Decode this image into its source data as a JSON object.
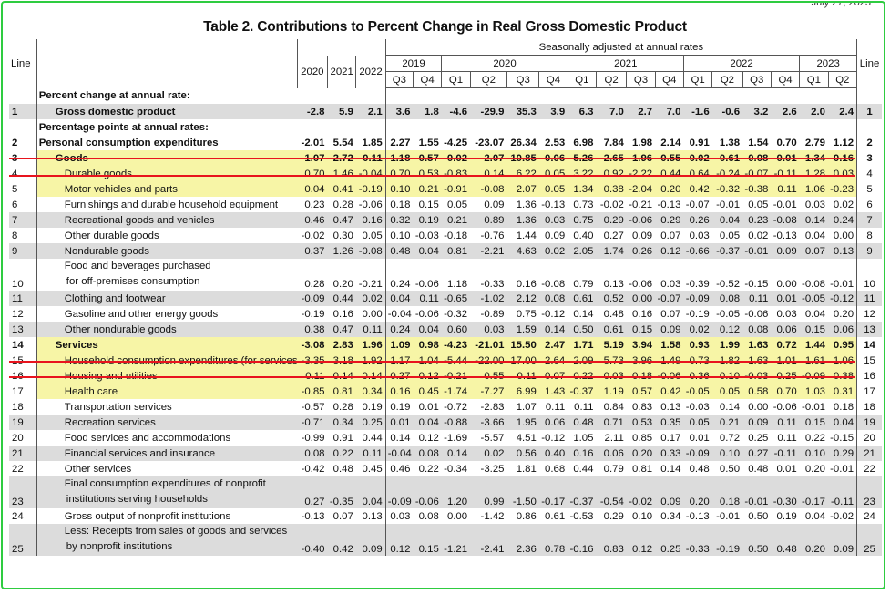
{
  "corner_text": "July 27, 2023",
  "title": "Table 2. Contributions to Percent Change in Real Gross Domestic Product",
  "header": {
    "line": "Line",
    "seasonal": "Seasonally adjusted at annual rates",
    "annual_years": [
      "2020",
      "2021",
      "2022"
    ],
    "quarter_years": [
      {
        "year": "2019",
        "span": 2
      },
      {
        "year": "2020",
        "span": 4
      },
      {
        "year": "2021",
        "span": 4
      },
      {
        "year": "2022",
        "span": 4
      },
      {
        "year": "2023",
        "span": 2
      }
    ],
    "quarters": [
      "Q3",
      "Q4",
      "Q1",
      "Q2",
      "Q3",
      "Q4",
      "Q1",
      "Q2",
      "Q3",
      "Q4",
      "Q1",
      "Q2",
      "Q3",
      "Q4",
      "Q1",
      "Q2"
    ]
  },
  "rows": [
    {
      "line": "",
      "label": "Percent change at annual rate:",
      "kind": "section",
      "indent": 0,
      "values": []
    },
    {
      "line": "1",
      "label": "Gross domestic product",
      "kind": "bold-gray",
      "indent": 1,
      "values": [
        "-2.8",
        "5.9",
        "2.1",
        "3.6",
        "1.8",
        "-4.6",
        "-29.9",
        "35.3",
        "3.9",
        "6.3",
        "7.0",
        "2.7",
        "7.0",
        "-1.6",
        "-0.6",
        "3.2",
        "2.6",
        "2.0",
        "2.4"
      ]
    },
    {
      "line": "",
      "label": "Percentage points at annual rates:",
      "kind": "section",
      "indent": 0,
      "values": []
    },
    {
      "line": "2",
      "label": "Personal consumption expenditures",
      "kind": "bold-white",
      "indent": 0,
      "values": [
        "-2.01",
        "5.54",
        "1.85",
        "2.27",
        "1.55",
        "-4.25",
        "-23.07",
        "26.34",
        "2.53",
        "6.98",
        "7.84",
        "1.98",
        "2.14",
        "0.91",
        "1.38",
        "1.54",
        "0.70",
        "2.79",
        "1.12"
      ]
    },
    {
      "line": "3",
      "label": "Goods",
      "kind": "bold-yellow",
      "indent": 1,
      "values": [
        "1.07",
        "2.72",
        "-0.11",
        "1.18",
        "0.57",
        "-0.02",
        "-2.07",
        "10.85",
        "0.06",
        "5.26",
        "2.65",
        "-1.96",
        "0.55",
        "-0.02",
        "-0.61",
        "-0.08",
        "-0.01",
        "1.34",
        "0.16"
      ]
    },
    {
      "line": "4",
      "label": "Durable goods",
      "kind": "yellow",
      "indent": 2,
      "values": [
        "0.70",
        "1.46",
        "-0.04",
        "0.70",
        "0.53",
        "-0.83",
        "0.14",
        "6.22",
        "0.05",
        "3.22",
        "0.92",
        "-2.22",
        "0.44",
        "0.64",
        "-0.24",
        "-0.07",
        "-0.11",
        "1.28",
        "0.03"
      ]
    },
    {
      "line": "5",
      "label": "Motor vehicles and parts",
      "kind": "yellow",
      "indent": 3,
      "values": [
        "0.04",
        "0.41",
        "-0.19",
        "0.10",
        "0.21",
        "-0.91",
        "-0.08",
        "2.07",
        "0.05",
        "1.34",
        "0.38",
        "-2.04",
        "0.20",
        "0.42",
        "-0.32",
        "-0.38",
        "0.11",
        "1.06",
        "-0.23"
      ]
    },
    {
      "line": "6",
      "label": "Furnishings and durable household equipment",
      "kind": "white",
      "indent": 3,
      "values": [
        "0.23",
        "0.28",
        "-0.06",
        "0.18",
        "0.15",
        "0.05",
        "0.09",
        "1.36",
        "-0.13",
        "0.73",
        "-0.02",
        "-0.21",
        "-0.13",
        "-0.07",
        "-0.01",
        "0.05",
        "-0.01",
        "0.03",
        "0.02"
      ]
    },
    {
      "line": "7",
      "label": "Recreational goods and vehicles",
      "kind": "gray",
      "indent": 3,
      "values": [
        "0.46",
        "0.47",
        "0.16",
        "0.32",
        "0.19",
        "0.21",
        "0.89",
        "1.36",
        "0.03",
        "0.75",
        "0.29",
        "-0.06",
        "0.29",
        "0.26",
        "0.04",
        "0.23",
        "-0.08",
        "0.14",
        "0.24"
      ]
    },
    {
      "line": "8",
      "label": "Other durable goods",
      "kind": "white",
      "indent": 3,
      "values": [
        "-0.02",
        "0.30",
        "0.05",
        "0.10",
        "-0.03",
        "-0.18",
        "-0.76",
        "1.44",
        "0.09",
        "0.40",
        "0.27",
        "0.09",
        "0.07",
        "0.03",
        "0.05",
        "0.02",
        "-0.13",
        "0.04",
        "0.00"
      ]
    },
    {
      "line": "9",
      "label": "Nondurable goods",
      "kind": "gray",
      "indent": 2,
      "values": [
        "0.37",
        "1.26",
        "-0.08",
        "0.48",
        "0.04",
        "0.81",
        "-2.21",
        "4.63",
        "0.02",
        "2.05",
        "1.74",
        "0.26",
        "0.12",
        "-0.66",
        "-0.37",
        "-0.01",
        "0.09",
        "0.07",
        "0.13"
      ]
    },
    {
      "line": "10",
      "label": "Food and beverages purchased",
      "label2": "for off-premises consumption",
      "kind": "white-tall",
      "indent": 3,
      "values": [
        "0.28",
        "0.20",
        "-0.21",
        "0.24",
        "-0.06",
        "1.18",
        "-0.33",
        "0.16",
        "-0.08",
        "0.79",
        "0.13",
        "-0.06",
        "0.03",
        "-0.39",
        "-0.52",
        "-0.15",
        "0.00",
        "-0.08",
        "-0.01"
      ]
    },
    {
      "line": "11",
      "label": "Clothing and footwear",
      "kind": "gray",
      "indent": 3,
      "values": [
        "-0.09",
        "0.44",
        "0.02",
        "0.04",
        "0.11",
        "-0.65",
        "-1.02",
        "2.12",
        "0.08",
        "0.61",
        "0.52",
        "0.00",
        "-0.07",
        "-0.09",
        "0.08",
        "0.11",
        "0.01",
        "-0.05",
        "-0.12"
      ]
    },
    {
      "line": "12",
      "label": "Gasoline and other energy goods",
      "kind": "white",
      "indent": 3,
      "values": [
        "-0.19",
        "0.16",
        "0.00",
        "-0.04",
        "-0.06",
        "-0.32",
        "-0.89",
        "0.75",
        "-0.12",
        "0.14",
        "0.48",
        "0.16",
        "0.07",
        "-0.19",
        "-0.05",
        "-0.06",
        "0.03",
        "0.04",
        "0.20"
      ]
    },
    {
      "line": "13",
      "label": "Other nondurable goods",
      "kind": "gray",
      "indent": 3,
      "values": [
        "0.38",
        "0.47",
        "0.11",
        "0.24",
        "0.04",
        "0.60",
        "0.03",
        "1.59",
        "0.14",
        "0.50",
        "0.61",
        "0.15",
        "0.09",
        "0.02",
        "0.12",
        "0.08",
        "0.06",
        "0.15",
        "0.06"
      ]
    },
    {
      "line": "14",
      "label": "Services",
      "kind": "bold-yellow",
      "indent": 1,
      "values": [
        "-3.08",
        "2.83",
        "1.96",
        "1.09",
        "0.98",
        "-4.23",
        "-21.01",
        "15.50",
        "2.47",
        "1.71",
        "5.19",
        "3.94",
        "1.58",
        "0.93",
        "1.99",
        "1.63",
        "0.72",
        "1.44",
        "0.95"
      ]
    },
    {
      "line": "15",
      "label": "Household consumption expenditures (for services)",
      "kind": "yellow",
      "indent": 2,
      "values": [
        "-3.35",
        "3.18",
        "1.92",
        "1.17",
        "1.04",
        "-5.44",
        "-22.00",
        "17.00",
        "2.64",
        "2.09",
        "5.73",
        "3.96",
        "1.49",
        "0.73",
        "1.82",
        "1.63",
        "1.01",
        "1.61",
        "1.06"
      ]
    },
    {
      "line": "16",
      "label": "Housing and utilities",
      "kind": "yellow",
      "indent": 3,
      "values": [
        "0.11",
        "0.14",
        "0.14",
        "0.27",
        "0.12",
        "-0.21",
        "0.55",
        "0.11",
        "0.07",
        "0.22",
        "0.03",
        "0.18",
        "-0.06",
        "0.36",
        "0.10",
        "-0.03",
        "0.25",
        "-0.09",
        "0.38"
      ]
    },
    {
      "line": "17",
      "label": "Health care",
      "kind": "yellow",
      "indent": 3,
      "values": [
        "-0.85",
        "0.81",
        "0.34",
        "0.16",
        "0.45",
        "-1.74",
        "-7.27",
        "6.99",
        "1.43",
        "-0.37",
        "1.19",
        "0.57",
        "0.42",
        "-0.05",
        "0.05",
        "0.58",
        "0.70",
        "1.03",
        "0.31"
      ]
    },
    {
      "line": "18",
      "label": "Transportation services",
      "kind": "white",
      "indent": 3,
      "values": [
        "-0.57",
        "0.28",
        "0.19",
        "0.19",
        "0.01",
        "-0.72",
        "-2.83",
        "1.07",
        "0.11",
        "0.11",
        "0.84",
        "0.83",
        "0.13",
        "-0.03",
        "0.14",
        "0.00",
        "-0.06",
        "-0.01",
        "0.18"
      ]
    },
    {
      "line": "19",
      "label": "Recreation services",
      "kind": "gray",
      "indent": 3,
      "values": [
        "-0.71",
        "0.34",
        "0.25",
        "0.01",
        "0.04",
        "-0.88",
        "-3.66",
        "1.95",
        "0.06",
        "0.48",
        "0.71",
        "0.53",
        "0.35",
        "0.05",
        "0.21",
        "0.09",
        "0.11",
        "0.15",
        "0.04"
      ]
    },
    {
      "line": "20",
      "label": "Food services and accommodations",
      "kind": "white",
      "indent": 3,
      "values": [
        "-0.99",
        "0.91",
        "0.44",
        "0.14",
        "0.12",
        "-1.69",
        "-5.57",
        "4.51",
        "-0.12",
        "1.05",
        "2.11",
        "0.85",
        "0.17",
        "0.01",
        "0.72",
        "0.25",
        "0.11",
        "0.22",
        "-0.15"
      ]
    },
    {
      "line": "21",
      "label": "Financial services and insurance",
      "kind": "gray",
      "indent": 3,
      "values": [
        "0.08",
        "0.22",
        "0.11",
        "-0.04",
        "0.08",
        "0.14",
        "0.02",
        "0.56",
        "0.40",
        "0.16",
        "0.06",
        "0.20",
        "0.33",
        "-0.09",
        "0.10",
        "0.27",
        "-0.11",
        "0.10",
        "0.29"
      ]
    },
    {
      "line": "22",
      "label": "Other services",
      "kind": "white",
      "indent": 3,
      "values": [
        "-0.42",
        "0.48",
        "0.45",
        "0.46",
        "0.22",
        "-0.34",
        "-3.25",
        "1.81",
        "0.68",
        "0.44",
        "0.79",
        "0.81",
        "0.14",
        "0.48",
        "0.50",
        "0.48",
        "0.01",
        "0.20",
        "-0.01"
      ]
    },
    {
      "line": "23",
      "label": "Final consumption expenditures of nonprofit",
      "label2": "institutions serving households",
      "kind": "gray-tall",
      "indent": 2,
      "values": [
        "0.27",
        "-0.35",
        "0.04",
        "-0.09",
        "-0.06",
        "1.20",
        "0.99",
        "-1.50",
        "-0.17",
        "-0.37",
        "-0.54",
        "-0.02",
        "0.09",
        "0.20",
        "0.18",
        "-0.01",
        "-0.30",
        "-0.17",
        "-0.11"
      ]
    },
    {
      "line": "24",
      "label": "Gross output of nonprofit institutions",
      "kind": "white",
      "indent": 3,
      "values": [
        "-0.13",
        "0.07",
        "0.13",
        "0.03",
        "0.08",
        "0.00",
        "-1.42",
        "0.86",
        "0.61",
        "-0.53",
        "0.29",
        "0.10",
        "0.34",
        "-0.13",
        "-0.01",
        "0.50",
        "0.19",
        "0.04",
        "-0.02"
      ]
    },
    {
      "line": "25",
      "label": "Less: Receipts from sales of goods and services",
      "label2": "by nonprofit institutions",
      "kind": "gray-tall",
      "indent": 3,
      "values": [
        "-0.40",
        "0.42",
        "0.09",
        "0.12",
        "0.15",
        "-1.21",
        "-2.41",
        "2.36",
        "0.78",
        "-0.16",
        "0.83",
        "0.12",
        "0.25",
        "-0.33",
        "-0.19",
        "0.50",
        "0.48",
        "0.20",
        "0.09"
      ]
    }
  ]
}
